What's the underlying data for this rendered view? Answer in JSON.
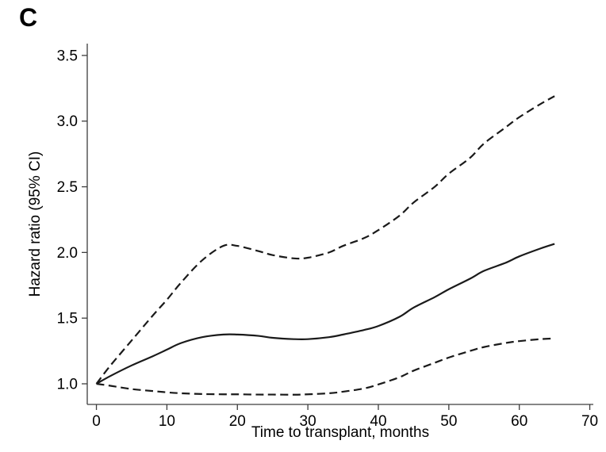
{
  "panel_label": "C",
  "colors": {
    "background": "#ffffff",
    "line": "#1a1a1a",
    "axis": "#3d3d3d",
    "text": "#000000"
  },
  "chart_data": {
    "type": "line",
    "title": "",
    "xlabel": "Time to transplant, months",
    "ylabel": "Hazard ratio (95% CI)",
    "xlim": [
      -1.3,
      70.5
    ],
    "ylim": [
      0.843,
      3.59
    ],
    "xticks": [
      0,
      10,
      20,
      30,
      40,
      50,
      60,
      70
    ],
    "yticks": [
      1.0,
      1.5,
      2.0,
      2.5,
      3.0,
      3.5
    ],
    "ytick_labels": [
      "1.0",
      "1.5",
      "2.0",
      "2.5",
      "3.0",
      "3.5"
    ],
    "grid": false,
    "legend": "none",
    "series": [
      {
        "name": "Hazard ratio",
        "style": "solid",
        "x": [
          0,
          2,
          5,
          8,
          10,
          12,
          15,
          18,
          20,
          23,
          25,
          28,
          30,
          33,
          35,
          38,
          40,
          43,
          45,
          48,
          50,
          53,
          55,
          58,
          60,
          63,
          65
        ],
        "y": [
          1.0,
          1.06,
          1.14,
          1.21,
          1.26,
          1.31,
          1.355,
          1.375,
          1.375,
          1.365,
          1.35,
          1.34,
          1.34,
          1.355,
          1.375,
          1.41,
          1.44,
          1.51,
          1.58,
          1.66,
          1.72,
          1.8,
          1.86,
          1.92,
          1.97,
          2.03,
          2.065
        ]
      },
      {
        "name": "Upper 95% CI",
        "style": "dashed",
        "x": [
          0,
          2,
          5,
          8,
          10,
          12,
          15,
          18,
          20,
          23,
          25,
          28,
          30,
          33,
          35,
          38,
          40,
          43,
          45,
          48,
          50,
          53,
          55,
          58,
          60,
          63,
          65
        ],
        "y": [
          1.0,
          1.14,
          1.33,
          1.52,
          1.64,
          1.77,
          1.94,
          2.05,
          2.05,
          2.01,
          1.98,
          1.955,
          1.96,
          2.0,
          2.05,
          2.11,
          2.17,
          2.28,
          2.38,
          2.5,
          2.6,
          2.72,
          2.83,
          2.95,
          3.03,
          3.13,
          3.19
        ]
      },
      {
        "name": "Lower 95% CI",
        "style": "dashed",
        "x": [
          0,
          2,
          5,
          8,
          10,
          12,
          15,
          18,
          20,
          23,
          25,
          28,
          30,
          33,
          35,
          38,
          40,
          43,
          45,
          48,
          50,
          53,
          55,
          58,
          60,
          63,
          65
        ],
        "y": [
          1.0,
          0.985,
          0.96,
          0.945,
          0.935,
          0.928,
          0.922,
          0.92,
          0.92,
          0.918,
          0.918,
          0.917,
          0.92,
          0.928,
          0.94,
          0.965,
          0.995,
          1.05,
          1.1,
          1.16,
          1.2,
          1.25,
          1.28,
          1.31,
          1.325,
          1.34,
          1.345
        ]
      }
    ]
  }
}
